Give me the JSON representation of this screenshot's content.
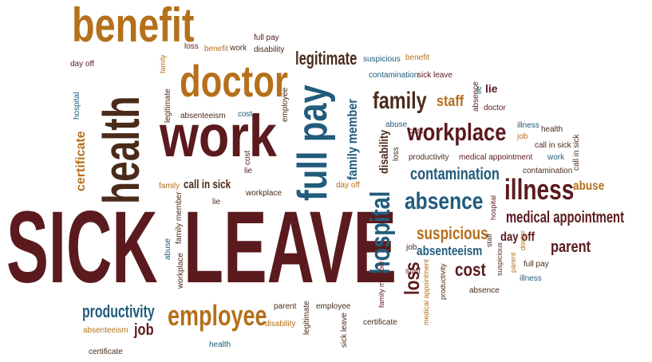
{
  "colors": {
    "maroon": "#5b1a1e",
    "gold": "#b5701b",
    "teal": "#215c7c",
    "brown": "#4a2b1a"
  },
  "words": {
    "sick": "SICK",
    "leave": "LEAVE",
    "benefit_big": "benefit",
    "doctor_big": "doctor",
    "health_big": "health",
    "work_big": "work",
    "full_pay_big": "full pay",
    "workplace_big": "workplace",
    "illness_big": "illness",
    "absence_big": "absence",
    "hospital_big": "hospital",
    "employee_big": "employee",
    "productivity_big": "productivity",
    "family_big": "family",
    "legitimate_big": "legitimate",
    "contamination_big": "contamination",
    "medical_appointment_big": "medical appointment",
    "suspicious_big": "suspicious",
    "certificate_big": "certificate",
    "family_member_big": "family member",
    "staff_big": "staff",
    "parent_big": "parent",
    "absenteeism_big": "absenteeism",
    "cost_big": "cost",
    "day_off_big": "day off",
    "loss_big": "loss",
    "job_big": "job",
    "abuse_big": "abuse",
    "call_in_sick_big": "call in sick",
    "disability_big": "disability",
    "lie_big": "lie",
    "loss_s": "loss",
    "benefit_s": "benefit",
    "work_s": "work",
    "full_pay_s": "full pay",
    "disability_s": "disability",
    "day_off_s": "day off",
    "family_s": "family",
    "hospital_s": "hospital",
    "legitimate_s": "legitimate",
    "absenteeism_s": "absenteeism",
    "cost_s": "cost",
    "employee_s": "employee",
    "suspicious_s": "suspicious",
    "benefit_s2": "benefit",
    "contamination_s": "contamination",
    "sick_leave_s": "sick leave",
    "lie_s": "lie",
    "doctor_s": "doctor",
    "absence_s": "absence",
    "abuse_s": "abuse",
    "illness_s": "illness",
    "health_s": "health",
    "job_s": "job",
    "call_in_sick_s": "call in sick",
    "work_s2": "work",
    "call_in_sick_s2": "call in sick",
    "contamination_s2": "contamination",
    "cost_s2": "cost",
    "lie_s2": "lie",
    "productivity_s": "productivity",
    "medical_appointment_s": "medical appointment",
    "family_s2": "family",
    "workplace_s": "workplace",
    "lie_s3": "lie",
    "day_off_s2": "day off",
    "family_member_s": "family member",
    "abuse_s2": "abuse",
    "workplace_s2": "workplace",
    "job_s2": "job",
    "staff_s": "staff",
    "family_member_s2": "family member",
    "medical_appointment_s2": "medical appointment",
    "productivity_s2": "productivity",
    "suspicious_s2": "suspicious",
    "staff_s2": "staff",
    "hospital_s2": "hospital",
    "doctor_s2": "doctor",
    "parent_s": "parent",
    "full_pay_s2": "full pay",
    "illness_s2": "illness",
    "absence_s2": "absence",
    "parent_s2": "parent",
    "employee_s2": "employee",
    "disability_s2": "disability",
    "legitimate_s2": "legitimate",
    "sick_leave_s2": "sick leave",
    "certificate_s": "certificate",
    "absenteeism_s2": "absenteeism",
    "certificate_s2": "certificate",
    "health_s2": "health",
    "day_off_s3": "day off"
  }
}
